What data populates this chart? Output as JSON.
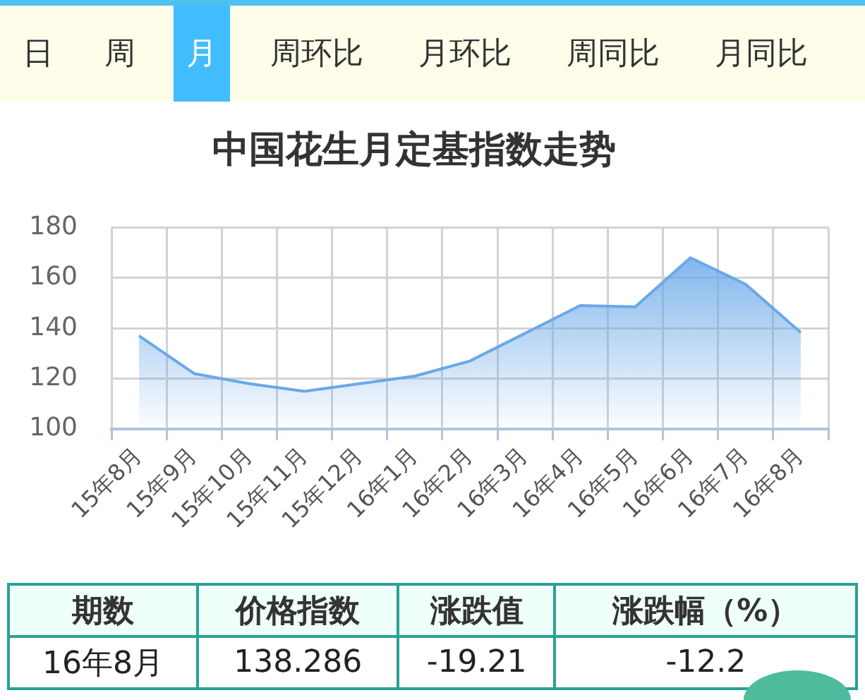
{
  "chart_data": {
    "type": "area",
    "title": "中国花生月定基指数走势",
    "categories": [
      "15年8月",
      "15年9月",
      "15年10月",
      "15年11月",
      "15年12月",
      "16年1月",
      "16年2月",
      "16年3月",
      "16年4月",
      "16年5月",
      "16年6月",
      "16年7月",
      "16年8月"
    ],
    "values": [
      137,
      122,
      118,
      115,
      118,
      121,
      127,
      138,
      149,
      148.5,
      168,
      157.5,
      138.3
    ],
    "color": "#6aa8e8",
    "ylim": [
      100,
      180
    ],
    "yticks": [
      100,
      120,
      140,
      160,
      180
    ],
    "grid": true,
    "marker": "none",
    "legend": false,
    "annotations": [
      "日",
      "周",
      "月",
      "周环比",
      "月环比",
      "周同比",
      "月同比",
      "期数",
      "价格指数",
      "涨跌值",
      "涨跌幅（%）",
      "16年8月",
      "138.286",
      "-19.21",
      "-12.2"
    ]
  }
}
